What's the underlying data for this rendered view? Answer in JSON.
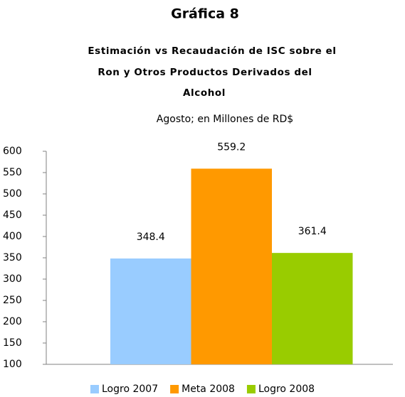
{
  "chart_data": {
    "type": "bar",
    "title": "Gráfica 8",
    "subtitle": [
      "Estimación vs Recaudación de ISC sobre el",
      "Ron y Otros Productos Derivados del",
      "Alcohol"
    ],
    "note": "Agosto; en Millones de RD$",
    "series": [
      {
        "name": "Logro 2007",
        "color": "#99ccff",
        "values": [
          348.4
        ]
      },
      {
        "name": "Meta 2008",
        "color": "#ff9900",
        "values": [
          559.2
        ]
      },
      {
        "name": "Logro 2008",
        "color": "#99cc00",
        "values": [
          361.4
        ]
      }
    ],
    "ylim": [
      100,
      600
    ],
    "yticks": [
      100,
      150,
      200,
      250,
      300,
      350,
      400,
      450,
      500,
      550,
      600
    ],
    "grid": false,
    "legend": "bottom"
  }
}
